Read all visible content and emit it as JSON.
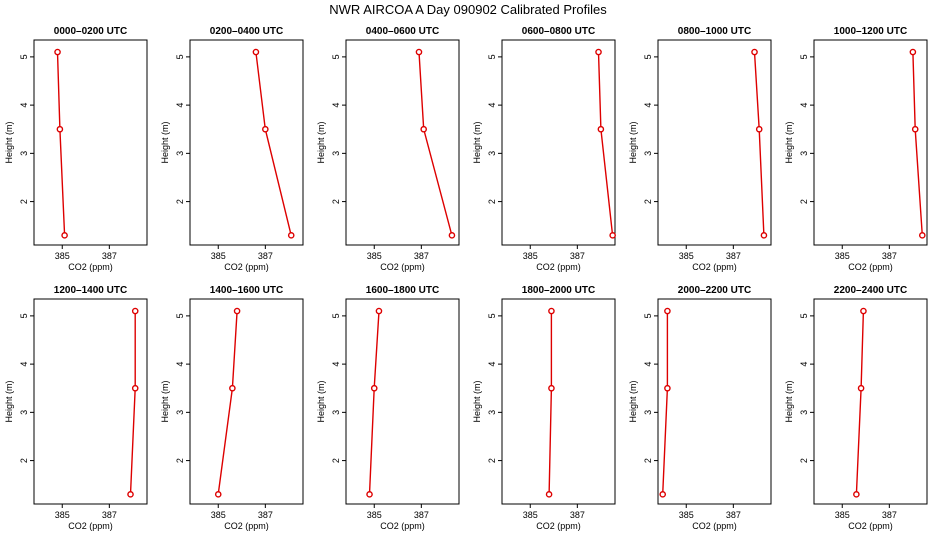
{
  "title": "NWR AIRCOA A  Day 090902  Calibrated Profiles",
  "chart_data": {
    "type": "line",
    "layout": "2 rows x 6 panels",
    "xlabel": "CO2 (ppm)",
    "ylabel": "Height (m)",
    "xlim": [
      383.8,
      388.6
    ],
    "ylim": [
      1.1,
      5.35
    ],
    "xticks": [
      385,
      387
    ],
    "yticks": [
      2,
      3,
      4,
      5
    ],
    "heights": [
      1.3,
      3.5,
      5.1
    ],
    "series_color": "#dd0000",
    "panels": [
      {
        "title": "0000–0200 UTC",
        "co2": [
          385.1,
          384.9,
          384.8
        ]
      },
      {
        "title": "0200–0400 UTC",
        "co2": [
          388.1,
          387.0,
          386.6
        ]
      },
      {
        "title": "0400–0600 UTC",
        "co2": [
          388.3,
          387.1,
          386.9
        ]
      },
      {
        "title": "0600–0800 UTC",
        "co2": [
          388.5,
          388.0,
          387.9
        ]
      },
      {
        "title": "0800–1000 UTC",
        "co2": [
          388.3,
          388.1,
          387.9
        ]
      },
      {
        "title": "1000–1200 UTC",
        "co2": [
          388.4,
          388.1,
          388.0
        ]
      },
      {
        "title": "1200–1400 UTC",
        "co2": [
          387.9,
          388.1,
          388.1
        ]
      },
      {
        "title": "1400–1600 UTC",
        "co2": [
          385.0,
          385.6,
          385.8
        ]
      },
      {
        "title": "1600–1800 UTC",
        "co2": [
          384.8,
          385.0,
          385.2
        ]
      },
      {
        "title": "1800–2000 UTC",
        "co2": [
          385.8,
          385.9,
          385.9
        ]
      },
      {
        "title": "2000–2200 UTC",
        "co2": [
          384.0,
          384.2,
          384.2
        ]
      },
      {
        "title": "2200–2400 UTC",
        "co2": [
          385.6,
          385.8,
          385.9
        ]
      }
    ]
  }
}
